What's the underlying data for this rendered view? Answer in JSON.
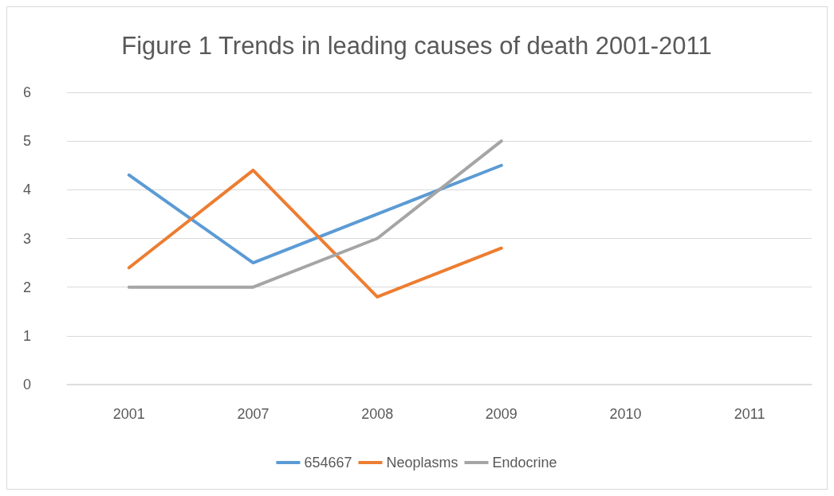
{
  "chart_data": {
    "type": "line",
    "title": "Figure 1 Trends in leading causes of death 2001-2011",
    "categories": [
      "2001",
      "2007",
      "2008",
      "2009",
      "2010",
      "2011"
    ],
    "series": [
      {
        "name": "654667",
        "color": "#5b9bd5",
        "values": [
          4.3,
          2.5,
          3.5,
          4.5,
          null,
          null
        ]
      },
      {
        "name": "Neoplasms",
        "color": "#ed7d31",
        "values": [
          2.4,
          4.4,
          1.8,
          2.8,
          null,
          null
        ]
      },
      {
        "name": "Endocrine",
        "color": "#a5a5a5",
        "values": [
          2,
          2,
          3,
          5,
          null,
          null
        ]
      }
    ],
    "ylim": [
      0,
      6
    ],
    "yticks": [
      0,
      1,
      2,
      3,
      4,
      5,
      6
    ],
    "grid": "y",
    "legend": "bottom",
    "marker": "none",
    "line_style": "solid"
  }
}
